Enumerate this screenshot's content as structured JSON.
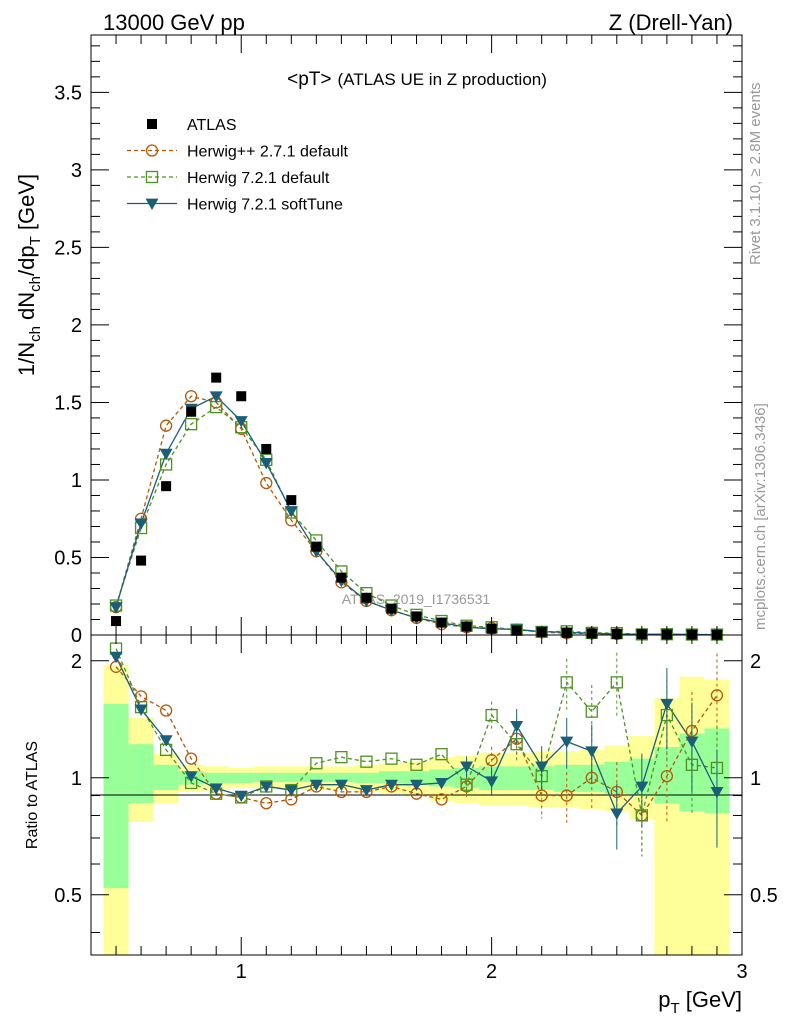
{
  "header": {
    "left": "13000 GeV pp",
    "right": "Z (Drell-Yan)"
  },
  "side_labels": {
    "top": "Rivet 3.1.10, ≥ 2.8M events",
    "bottom": "mcplots.cern.ch [arXiv:1306.3436]"
  },
  "watermark": "ATLAS_2019_I1736531",
  "chart_data": {
    "type": "line",
    "title": "<pT>",
    "subtitle": "(ATLAS UE in Z production)",
    "xlabel": "p_T [GeV]",
    "ylabel": "1/N_ch dN_ch/dp_T [GeV]",
    "ratio_ylabel": "Ratio to ATLAS",
    "xlim": [
      0.4,
      3.0
    ],
    "ylim": [
      0,
      3.87
    ],
    "ratio_ylim": [
      0.35,
      2.33
    ],
    "x_ticks": [
      1,
      2,
      3
    ],
    "y_ticks": [
      0,
      0.5,
      1,
      1.5,
      2,
      2.5,
      3,
      3.5
    ],
    "ratio_ticks": [
      0.5,
      1,
      2
    ],
    "x": [
      0.5,
      0.6,
      0.7,
      0.8,
      0.9,
      1.0,
      1.1,
      1.2,
      1.3,
      1.4,
      1.5,
      1.6,
      1.7,
      1.8,
      1.9,
      2.0,
      2.1,
      2.2,
      2.3,
      2.4,
      2.5,
      2.6,
      2.7,
      2.8,
      2.9
    ],
    "series": [
      {
        "name": "ATLAS",
        "style": "data",
        "color": "#000000",
        "values": [
          0.09,
          0.48,
          0.96,
          1.44,
          1.66,
          1.54,
          1.2,
          0.87,
          0.57,
          0.37,
          0.24,
          0.17,
          0.12,
          0.08,
          0.055,
          0.04,
          0.028,
          0.02,
          0.014,
          0.01,
          0.007,
          0.005,
          0.0035,
          0.0025,
          0.0018
        ]
      },
      {
        "name": "Herwig++ 2.7.1 default",
        "style": "circle-dashed",
        "color": "#b35806",
        "values": [
          0.18,
          0.75,
          1.35,
          1.54,
          1.5,
          1.33,
          0.98,
          0.74,
          0.54,
          0.34,
          0.22,
          0.16,
          0.11,
          0.07,
          0.05,
          0.044,
          0.035,
          0.018,
          0.012,
          0.01,
          0.006,
          0.004,
          0.0035,
          0.0033,
          0.003
        ]
      },
      {
        "name": "Herwig 7.2.1 default",
        "style": "square-dashed",
        "color": "#4d9221",
        "values": [
          0.19,
          0.69,
          1.1,
          1.36,
          1.47,
          1.34,
          1.13,
          0.79,
          0.61,
          0.41,
          0.27,
          0.19,
          0.13,
          0.09,
          0.06,
          0.05,
          0.034,
          0.02,
          0.024,
          0.014,
          0.012,
          0.004,
          0.005,
          0.003,
          0.0028
        ]
      },
      {
        "name": "Herwig 7.2.1 softTune",
        "style": "triangle-solid",
        "color": "#1b5e78",
        "values": [
          0.18,
          0.72,
          1.17,
          1.46,
          1.54,
          1.38,
          1.11,
          0.8,
          0.54,
          0.35,
          0.22,
          0.16,
          0.11,
          0.08,
          0.05,
          0.04,
          0.036,
          0.022,
          0.017,
          0.011,
          0.006,
          0.004,
          0.0055,
          0.0032,
          0.0017
        ]
      }
    ],
    "ratio_series": [
      {
        "name": "Herwig++ 2.7.1 default",
        "values": [
          1.93,
          1.62,
          1.49,
          1.12,
          0.91,
          0.89,
          0.86,
          0.88,
          0.95,
          0.92,
          0.92,
          0.95,
          0.91,
          0.88,
          0.95,
          1.11,
          1.26,
          0.9,
          0.9,
          1.0,
          0.92,
          0.8,
          1.01,
          1.32,
          1.63
        ]
      },
      {
        "name": "Herwig 7.2.1 default",
        "values": [
          2.15,
          1.52,
          1.18,
          0.97,
          0.91,
          0.89,
          0.95,
          0.93,
          1.09,
          1.13,
          1.1,
          1.12,
          1.08,
          1.15,
          0.96,
          1.45,
          1.22,
          1.01,
          1.76,
          1.48,
          1.76,
          0.8,
          1.45,
          1.08,
          1.06
        ]
      },
      {
        "name": "Herwig 7.2.1 softTune",
        "values": [
          2.05,
          1.5,
          1.25,
          1.01,
          0.94,
          0.9,
          0.95,
          0.93,
          0.96,
          0.96,
          0.93,
          0.96,
          0.96,
          0.97,
          1.07,
          0.98,
          1.36,
          1.07,
          1.24,
          1.17,
          0.81,
          0.95,
          1.55,
          1.24,
          0.92
        ]
      }
    ],
    "ratio_stat_band": [
      [
        0.52,
        1.55
      ],
      [
        0.86,
        1.22
      ],
      [
        0.93,
        1.08
      ],
      [
        0.96,
        1.04
      ],
      [
        0.97,
        1.03
      ],
      [
        0.97,
        1.03
      ],
      [
        0.975,
        1.03
      ],
      [
        0.975,
        1.03
      ],
      [
        0.975,
        1.03
      ],
      [
        0.975,
        1.03
      ],
      [
        0.97,
        1.03
      ],
      [
        0.97,
        1.04
      ],
      [
        0.96,
        1.04
      ],
      [
        0.95,
        1.05
      ],
      [
        0.94,
        1.06
      ],
      [
        0.93,
        1.07
      ],
      [
        0.93,
        1.07
      ],
      [
        0.93,
        1.07
      ],
      [
        0.92,
        1.08
      ],
      [
        0.92,
        1.08
      ],
      [
        0.91,
        1.1
      ],
      [
        0.9,
        1.12
      ],
      [
        0.86,
        1.2
      ],
      [
        0.82,
        1.3
      ],
      [
        0.81,
        1.34
      ]
    ],
    "ratio_total_band": [
      [
        0.35,
        1.95
      ],
      [
        0.77,
        1.43
      ],
      [
        0.86,
        1.15
      ],
      [
        0.92,
        1.08
      ],
      [
        0.93,
        1.07
      ],
      [
        0.94,
        1.06
      ],
      [
        0.94,
        1.07
      ],
      [
        0.93,
        1.07
      ],
      [
        0.93,
        1.07
      ],
      [
        0.93,
        1.07
      ],
      [
        0.92,
        1.08
      ],
      [
        0.91,
        1.09
      ],
      [
        0.9,
        1.1
      ],
      [
        0.87,
        1.13
      ],
      [
        0.86,
        1.14
      ],
      [
        0.85,
        1.16
      ],
      [
        0.85,
        1.16
      ],
      [
        0.84,
        1.17
      ],
      [
        0.84,
        1.17
      ],
      [
        0.83,
        1.18
      ],
      [
        0.82,
        1.21
      ],
      [
        0.78,
        1.28
      ],
      [
        0.35,
        1.6
      ],
      [
        0.35,
        1.82
      ],
      [
        0.35,
        1.79
      ]
    ]
  }
}
